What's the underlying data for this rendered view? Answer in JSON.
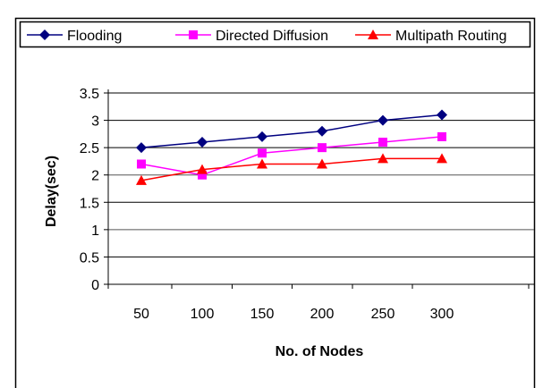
{
  "chart_data": {
    "type": "line",
    "title": "",
    "xlabel": "No. of Nodes",
    "ylabel": "Delay(sec)",
    "x": [
      50,
      100,
      150,
      200,
      250,
      300
    ],
    "ylim": [
      0,
      3.5
    ],
    "yticks": [
      "0",
      "0.5",
      "1",
      "1.5",
      "2",
      "2.5",
      "3",
      "3.5"
    ],
    "grid": true,
    "legend_position": "top",
    "series": [
      {
        "name": "Flooding",
        "values": [
          2.5,
          2.6,
          2.7,
          2.8,
          3.0,
          3.1
        ],
        "color": "#000080",
        "marker": "diamond"
      },
      {
        "name": "Directed Diffusion",
        "values": [
          2.2,
          2.0,
          2.4,
          2.5,
          2.6,
          2.7
        ],
        "color": "#ff00ff",
        "marker": "square"
      },
      {
        "name": "Multipath Routing",
        "values": [
          1.9,
          2.1,
          2.2,
          2.2,
          2.3,
          2.3
        ],
        "color": "#ff0000",
        "marker": "triangle"
      }
    ]
  }
}
